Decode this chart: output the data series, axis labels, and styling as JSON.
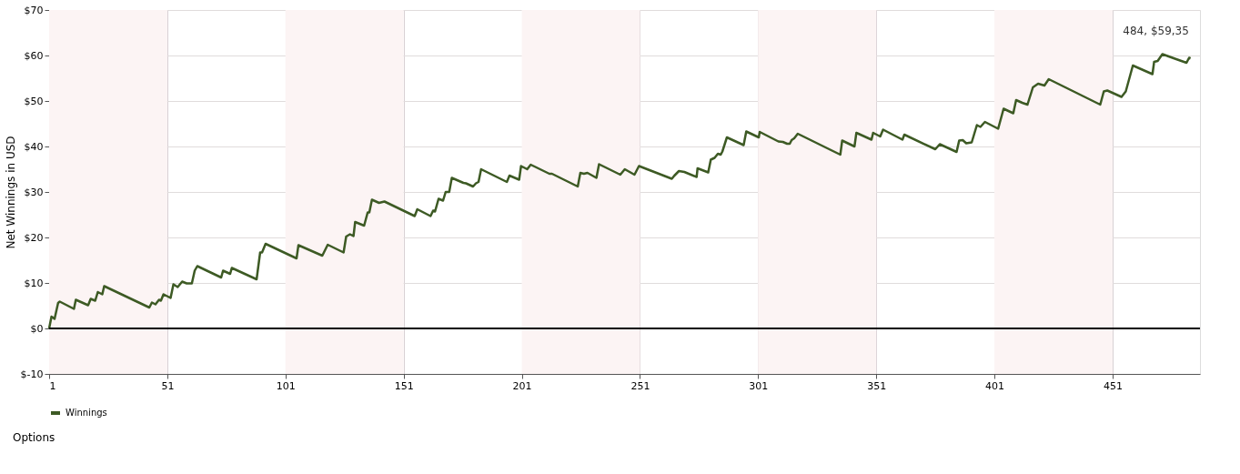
{
  "chart_data": {
    "type": "line",
    "ylabel": "Net Winnings in USD",
    "xlim": [
      1,
      488
    ],
    "xticks": [
      1,
      51,
      101,
      151,
      201,
      251,
      301,
      351,
      401,
      451
    ],
    "ylim": [
      -10,
      70
    ],
    "yticks": [
      {
        "value": -10,
        "label": "$-10"
      },
      {
        "value": 0,
        "label": "$0"
      },
      {
        "value": 10,
        "label": "$10"
      },
      {
        "value": 20,
        "label": "$20"
      },
      {
        "value": 30,
        "label": "$30"
      },
      {
        "value": 40,
        "label": "$40"
      },
      {
        "value": 50,
        "label": "$50"
      },
      {
        "value": 60,
        "label": "$60"
      },
      {
        "value": 70,
        "label": "$70"
      }
    ],
    "grid": true,
    "legend": "bottom",
    "line_style": "solid",
    "marker": "none",
    "bands": [
      {
        "axis": "x",
        "from": 1,
        "to": 51,
        "color": "#fcf4f4"
      },
      {
        "axis": "x",
        "from": 101,
        "to": 151,
        "color": "#fcf4f4"
      },
      {
        "axis": "x",
        "from": 201,
        "to": 251,
        "color": "#fcf4f4"
      },
      {
        "axis": "x",
        "from": 301,
        "to": 351,
        "color": "#fcf4f4"
      },
      {
        "axis": "x",
        "from": 401,
        "to": 451,
        "color": "#fcf4f4"
      }
    ],
    "ref_lines": [
      {
        "axis": "y",
        "value": 0,
        "color": "#000000"
      }
    ],
    "annotations": [
      {
        "text": "484, $59,35",
        "x": 484,
        "y": 59.35
      },
      "Options"
    ],
    "series": [
      {
        "name": "Winnings",
        "color": "#3d5a24",
        "x": [
          1,
          2,
          3.3,
          4.8,
          5.5,
          11.5,
          12.3,
          17.5,
          18.6,
          20.5,
          21.6,
          23.5,
          24.3,
          43.4,
          44.5,
          46,
          47.5,
          48.3,
          49.4,
          52.4,
          53.6,
          55.4,
          57.3,
          59.2,
          61.4,
          62.6,
          63.7,
          73.8,
          74.6,
          77.6,
          78.3,
          88.8,
          90.3,
          91.1,
          92.6,
          105.7,
          106.5,
          116.6,
          118.9,
          125.6,
          126.7,
          128.3,
          129.8,
          130.5,
          134.3,
          135.8,
          136.5,
          137.6,
          140.6,
          142.9,
          155.7,
          156.8,
          162.4,
          163.5,
          164.3,
          165.8,
          167.7,
          168.8,
          170.3,
          171.4,
          176.3,
          177.4,
          180.4,
          181.6,
          182.7,
          183.8,
          194.7,
          195.8,
          199.9,
          200.7,
          203.3,
          204.8,
          212.7,
          213.8,
          224.7,
          225.8,
          227.3,
          228.8,
          232.6,
          233.7,
          242.7,
          244.6,
          248.7,
          250.6,
          264.5,
          265.6,
          267.5,
          269.8,
          275,
          275.4,
          279.9,
          281,
          282.6,
          284,
          285.2,
          285.9,
          287.8,
          294.9,
          296,
          301.3,
          301.7,
          309.6,
          311.5,
          313.3,
          314.4,
          315.2,
          316.3,
          317.8,
          335.8,
          336.6,
          341.8,
          342.6,
          349,
          349.7,
          352.7,
          353.9,
          362.1,
          362.9,
          376,
          377.9,
          385,
          386.1,
          387.6,
          389.1,
          391.4,
          393.6,
          395.1,
          397,
          402.6,
          404.9,
          409,
          410.2,
          412.8,
          415,
          417.3,
          418.4,
          419.5,
          422.2,
          424,
          445.8,
          447.3,
          448.8,
          454.8,
          456.6,
          459.6,
          467.9,
          468.6,
          470.1,
          472.1,
          477.4,
          482.3,
          483.4,
          484
        ],
        "values": [
          0,
          2.6,
          2.1,
          5.6,
          5.9,
          4.3,
          6.3,
          5.1,
          6.5,
          6.1,
          8.0,
          7.5,
          9.3,
          4.6,
          5.7,
          5.3,
          6.3,
          6.1,
          7.5,
          6.7,
          9.7,
          9.1,
          10.3,
          9.9,
          9.9,
          12.7,
          13.7,
          11.2,
          12.7,
          12.0,
          13.3,
          10.8,
          16.7,
          16.7,
          18.6,
          15.4,
          18.3,
          16.0,
          18.4,
          16.7,
          20.2,
          20.7,
          20.3,
          23.4,
          22.6,
          25.5,
          25.5,
          28.3,
          27.6,
          27.9,
          24.7,
          26.2,
          24.7,
          25.9,
          25.7,
          28.5,
          28.1,
          30.0,
          30.0,
          33.1,
          32.0,
          31.9,
          31.2,
          31.9,
          32.2,
          35.0,
          32.2,
          33.6,
          32.7,
          35.7,
          35.0,
          36.0,
          34.0,
          34.0,
          31.2,
          34.2,
          34.0,
          34.2,
          33.1,
          36.1,
          33.8,
          35.0,
          33.8,
          35.7,
          32.9,
          33.6,
          34.6,
          34.4,
          33.3,
          35.2,
          34.3,
          37.1,
          37.5,
          38.4,
          38.2,
          38.9,
          42.0,
          40.3,
          43.3,
          42.0,
          43.2,
          41.1,
          41.0,
          40.6,
          40.6,
          41.4,
          41.8,
          42.8,
          38.2,
          41.3,
          40.0,
          43.0,
          41.5,
          43.0,
          42.2,
          43.7,
          41.5,
          42.6,
          39.4,
          40.5,
          38.8,
          41.3,
          41.4,
          40.7,
          40.9,
          44.7,
          44.3,
          45.4,
          43.9,
          48.3,
          47.3,
          50.2,
          49.6,
          49.2,
          53.0,
          53.4,
          53.8,
          53.4,
          54.8,
          49.2,
          52.1,
          52.3,
          50.9,
          52.1,
          57.8,
          55.9,
          58.6,
          58.8,
          60.3,
          59.3,
          58.4,
          59.5,
          59.35
        ]
      }
    ]
  }
}
